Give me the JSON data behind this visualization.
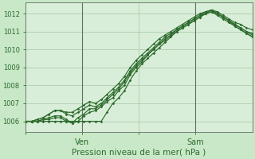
{
  "xlabel": "Pression niveau de la mer( hPa )",
  "background_color": "#c8e8c8",
  "plot_bg_color": "#d8eed8",
  "grid_color": "#b0ccb0",
  "line_color": "#2d6a2d",
  "marker_color": "#2d6a2d",
  "ylim": [
    1005.4,
    1012.6
  ],
  "xlim": [
    0,
    44
  ],
  "yticks": [
    1006,
    1007,
    1008,
    1009,
    1010,
    1011,
    1012
  ],
  "xtick_labels": [
    "",
    "Ven",
    "",
    "Sam"
  ],
  "xtick_positions": [
    0,
    11,
    22,
    33
  ],
  "vlines": [
    11,
    33
  ],
  "series": [
    [
      1006.0,
      1006.0,
      1006.1,
      1006.2,
      1006.4,
      1006.6,
      1006.6,
      1006.5,
      1006.5,
      1006.7,
      1006.9,
      1007.1,
      1007.0,
      1007.2,
      1007.5,
      1007.8,
      1008.1,
      1008.5,
      1009.0,
      1009.4,
      1009.7,
      1010.0,
      1010.3,
      1010.6,
      1010.8,
      1011.0,
      1011.2,
      1011.4,
      1011.6,
      1011.8,
      1012.0,
      1012.1,
      1012.2,
      1012.1,
      1011.9,
      1011.7,
      1011.5,
      1011.4,
      1011.2,
      1011.1
    ],
    [
      1006.0,
      1006.0,
      1006.1,
      1006.2,
      1006.4,
      1006.6,
      1006.6,
      1006.4,
      1006.3,
      1006.5,
      1006.7,
      1006.9,
      1006.8,
      1007.0,
      1007.3,
      1007.6,
      1007.9,
      1008.3,
      1008.8,
      1009.2,
      1009.5,
      1009.8,
      1010.1,
      1010.4,
      1010.7,
      1010.9,
      1011.1,
      1011.3,
      1011.5,
      1011.7,
      1011.9,
      1012.0,
      1012.1,
      1012.0,
      1011.8,
      1011.6,
      1011.4,
      1011.2,
      1011.0,
      1010.9
    ],
    [
      1006.0,
      1006.0,
      1006.0,
      1006.1,
      1006.2,
      1006.3,
      1006.3,
      1006.1,
      1005.9,
      1006.2,
      1006.4,
      1006.7,
      1006.7,
      1006.9,
      1007.2,
      1007.5,
      1007.8,
      1008.2,
      1008.7,
      1009.1,
      1009.4,
      1009.7,
      1010.0,
      1010.3,
      1010.6,
      1010.8,
      1011.1,
      1011.3,
      1011.5,
      1011.7,
      1011.9,
      1012.1,
      1012.2,
      1012.0,
      1011.8,
      1011.6,
      1011.4,
      1011.2,
      1011.0,
      1010.8
    ],
    [
      1006.0,
      1006.0,
      1006.0,
      1006.1,
      1006.1,
      1006.2,
      1006.2,
      1006.0,
      1005.9,
      1006.0,
      1006.3,
      1006.5,
      1006.6,
      1006.8,
      1007.1,
      1007.3,
      1007.7,
      1008.0,
      1008.6,
      1009.0,
      1009.3,
      1009.7,
      1010.0,
      1010.3,
      1010.5,
      1010.8,
      1011.0,
      1011.2,
      1011.4,
      1011.6,
      1011.8,
      1012.0,
      1012.1,
      1011.9,
      1011.7,
      1011.5,
      1011.3,
      1011.1,
      1010.9,
      1010.7
    ],
    [
      1006.0,
      1006.0,
      1006.0,
      1006.0,
      1006.0,
      1006.0,
      1006.0,
      1006.0,
      1006.0,
      1006.0,
      1006.0,
      1006.0,
      1006.0,
      1006.0,
      1006.5,
      1007.0,
      1007.3,
      1007.7,
      1008.3,
      1008.8,
      1009.2,
      1009.5,
      1009.8,
      1010.1,
      1010.4,
      1010.7,
      1011.0,
      1011.2,
      1011.4,
      1011.6,
      1011.8,
      1012.0,
      1012.2,
      1012.0,
      1011.8,
      1011.6,
      1011.3,
      1011.1,
      1010.9,
      1010.7
    ]
  ]
}
